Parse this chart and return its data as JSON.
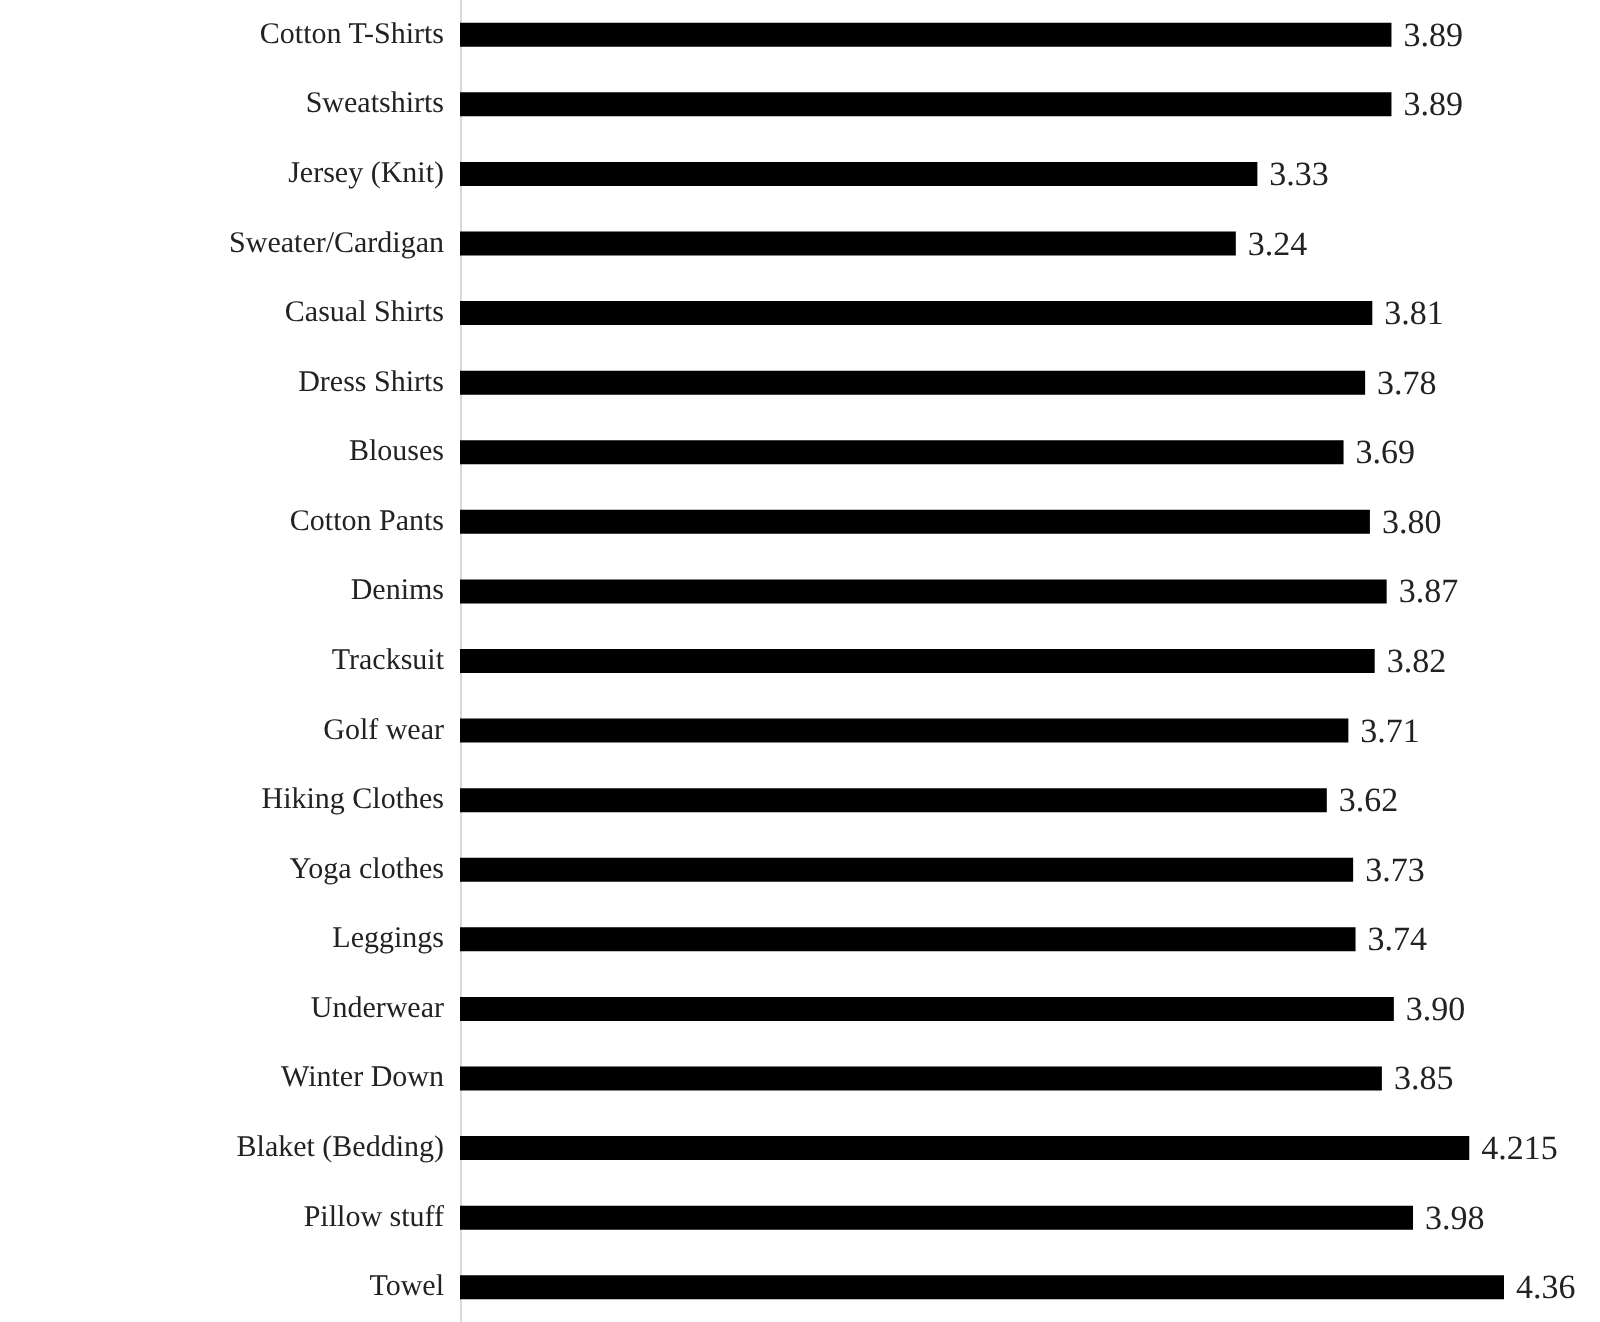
{
  "chart_data": {
    "type": "bar",
    "orientation": "horizontal",
    "categories": [
      "Cotton T-Shirts",
      "Sweatshirts",
      "Jersey (Knit)",
      "Sweater/Cardigan",
      "Casual Shirts",
      "Dress Shirts",
      "Blouses",
      "Cotton Pants",
      "Denims",
      "Tracksuit",
      "Golf wear",
      "Hiking Clothes",
      "Yoga clothes",
      "Leggings",
      "Underwear",
      "Winter Down",
      "Blaket (Bedding)",
      "Pillow stuff",
      "Towel"
    ],
    "values": [
      3.89,
      3.89,
      3.33,
      3.24,
      3.81,
      3.78,
      3.69,
      3.8,
      3.87,
      3.82,
      3.71,
      3.62,
      3.73,
      3.74,
      3.9,
      3.85,
      4.215,
      3.98,
      4.36
    ],
    "value_labels": [
      "3.89",
      "3.89",
      "3.33",
      "3.24",
      "3.81",
      "3.78",
      "3.69",
      "3.80",
      "3.87",
      "3.82",
      "3.71",
      "3.62",
      "3.73",
      "3.74",
      "3.90",
      "3.85",
      "4.215",
      "3.98",
      "4.36"
    ],
    "color": "#000000"
  }
}
